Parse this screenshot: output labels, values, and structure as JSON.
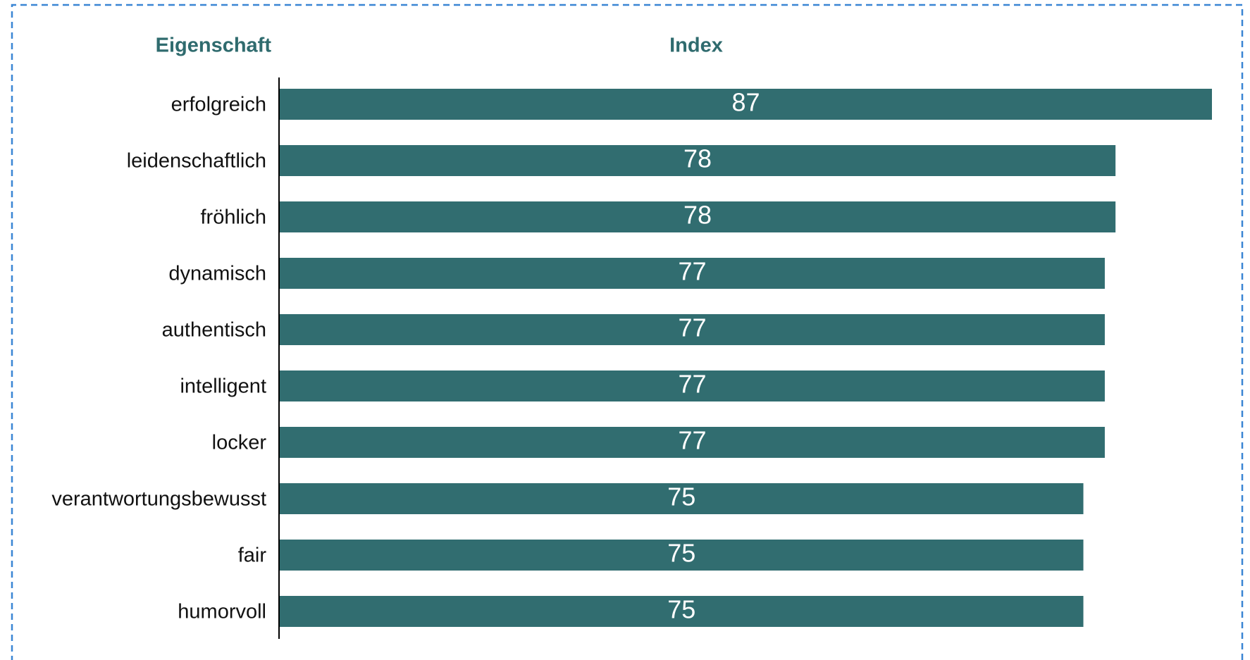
{
  "chart_data": {
    "type": "bar",
    "orientation": "horizontal",
    "ylabel": "Eigenschaft",
    "xlabel": "Index",
    "categories": [
      "erfolgreich",
      "leidenschaftlich",
      "fröhlich",
      "dynamisch",
      "authentisch",
      "intelligent",
      "locker",
      "verantwortungsbewusst",
      "fair",
      "humorvoll"
    ],
    "values": [
      87,
      78,
      78,
      77,
      77,
      77,
      77,
      75,
      75,
      75
    ],
    "color": "#316d70"
  }
}
